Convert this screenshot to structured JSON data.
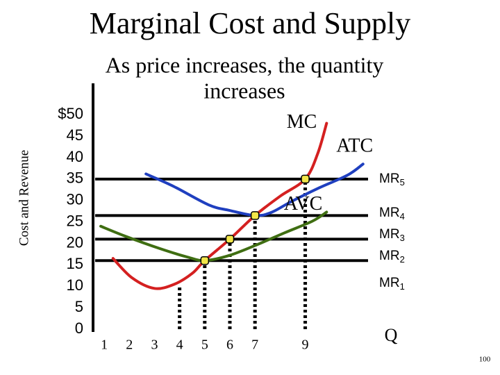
{
  "chart_data": {
    "type": "line",
    "title": "Marginal Cost and Supply",
    "subtitle": [
      "As price increases, the quantity",
      "increases"
    ],
    "ylabel": "Cost and Revenue",
    "xlabel": "Q",
    "xlim": [
      0.5,
      11.5
    ],
    "xticks": [
      1,
      2,
      3,
      4,
      5,
      6,
      7,
      9
    ],
    "ylim": [
      0,
      57
    ],
    "yticks": [
      {
        "value": 50,
        "label": "$50"
      },
      45,
      40,
      35,
      30,
      25,
      20,
      15,
      10,
      5,
      0
    ],
    "series": [
      {
        "name": "MC",
        "color": "#d42020",
        "x": [
          1.35,
          2.1,
          3,
          3.8,
          4.5,
          5,
          6,
          7,
          8,
          9,
          9.5,
          9.85
        ],
        "values": [
          16.5,
          12,
          9.5,
          10.5,
          13,
          16,
          21,
          26.5,
          31,
          35,
          41,
          48
        ]
      },
      {
        "name": "ATC",
        "color": "#1f3fbf",
        "x": [
          2.66,
          3.76,
          5.15,
          5.98,
          7,
          7.64,
          8.46,
          9.57,
          10.68,
          11.3
        ],
        "values": [
          36.2,
          33.3,
          29,
          27.7,
          26.5,
          27.2,
          29.8,
          33,
          35.9,
          38.5
        ]
      },
      {
        "name": "AVC",
        "color": "#3f6e12",
        "x": [
          0.86,
          1.83,
          3.21,
          4.32,
          5,
          5.98,
          7.08,
          8.19,
          9.29,
          9.85
        ],
        "values": [
          24,
          21.7,
          18.8,
          16.8,
          16,
          17.2,
          19.7,
          22.5,
          25.2,
          27.3
        ]
      }
    ],
    "mr_lines": [
      {
        "name": "MR",
        "sub": "5",
        "value": 35,
        "line": true
      },
      {
        "name": "MR",
        "sub": "4",
        "value": 26.5,
        "line": true
      },
      {
        "name": "MR",
        "sub": "3",
        "value": 21,
        "line": true
      },
      {
        "name": "MR",
        "sub": "2",
        "value": 16,
        "line": true
      },
      {
        "name": "MR",
        "sub": "1",
        "value": 10,
        "line": false
      }
    ],
    "supply_points": {
      "color": "#f2e64a",
      "x": [
        5,
        6,
        7,
        9
      ],
      "values": [
        16,
        21,
        26.5,
        35
      ]
    },
    "quantity_guides": {
      "x": [
        4,
        5,
        6,
        7,
        9
      ],
      "values": [
        10,
        16,
        21,
        26.5,
        35
      ]
    },
    "slide_number": "100"
  }
}
